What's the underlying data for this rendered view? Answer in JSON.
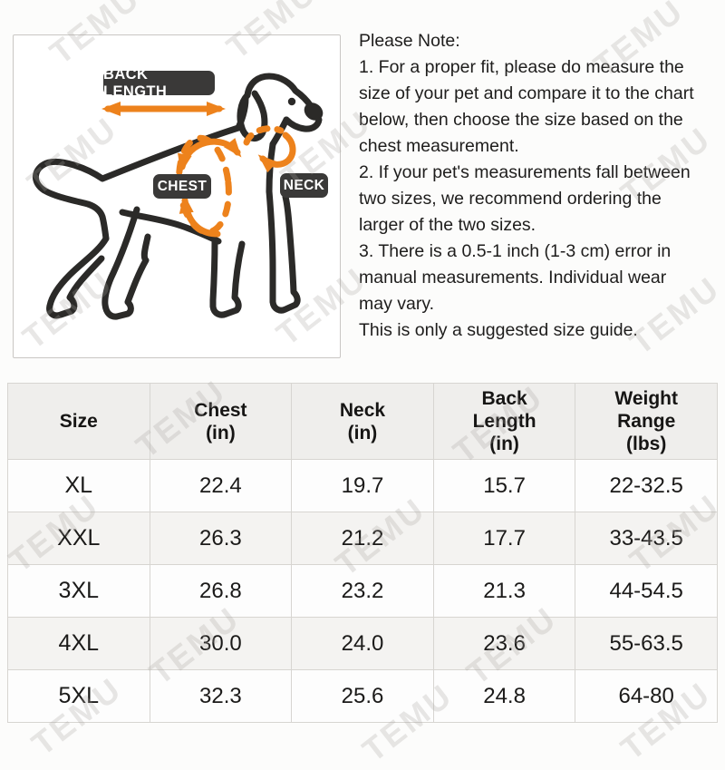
{
  "watermark": {
    "text": "TEMU",
    "color": "rgba(168,163,158,0.26)"
  },
  "diagram": {
    "labels": {
      "back_length": "BACK LENGTH",
      "chest": "CHEST",
      "neck": "NECK"
    },
    "colors": {
      "annotation_orange": "#ed821c",
      "label_bg": "#3a3938",
      "dog_outline": "#2b2a28"
    }
  },
  "notes": {
    "title": "Please Note:",
    "items": [
      "1. For a proper fit, please do measure the\nsize of your pet and compare it to the chart\nbelow, then choose the size based on the\nchest measurement.",
      "2. If your pet's measurements fall between\ntwo sizes, we recommend ordering the\nlarger of the two sizes.",
      "3. There is a 0.5-1 inch (1-3 cm) error in\nmanual measurements. Individual wear\nmay vary.",
      "This is only a suggested size guide."
    ]
  },
  "size_chart": {
    "headers": [
      "Size",
      "Chest\n(in)",
      "Neck\n(in)",
      "Back\nLength\n(in)",
      "Weight\nRange\n(lbs)"
    ],
    "rows": [
      [
        "XL",
        "22.4",
        "19.7",
        "15.7",
        "22-32.5"
      ],
      [
        "XXL",
        "26.3",
        "21.2",
        "17.7",
        "33-43.5"
      ],
      [
        "3XL",
        "26.8",
        "23.2",
        "21.3",
        "44-54.5"
      ],
      [
        "4XL",
        "30.0",
        "24.0",
        "23.6",
        "55-63.5"
      ],
      [
        "5XL",
        "32.3",
        "25.6",
        "24.8",
        "64-80"
      ]
    ]
  }
}
